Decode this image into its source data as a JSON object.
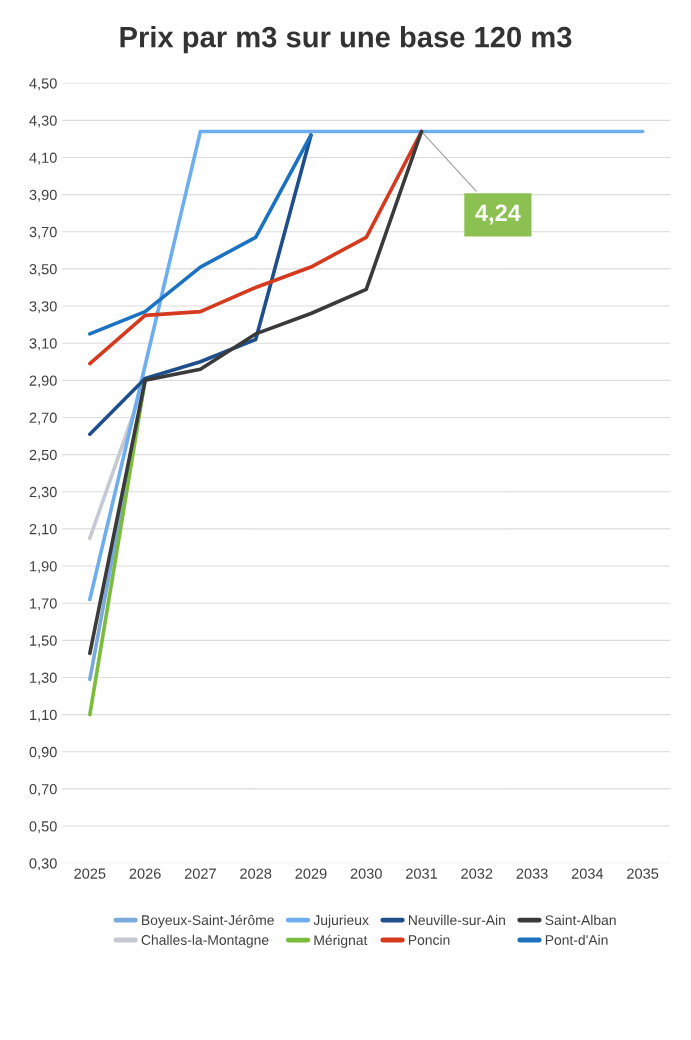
{
  "chart_data": {
    "type": "line",
    "title": "Prix par m3 sur une base 120 m3",
    "categories": [
      "2025",
      "2026",
      "2027",
      "2028",
      "2029",
      "2030",
      "2031",
      "2032",
      "2033",
      "2034",
      "2035"
    ],
    "series": [
      {
        "name": "Boyeux-Saint-Jérôme",
        "color": "#7aa9dc",
        "values": [
          1.29,
          2.9,
          null,
          null,
          null,
          null,
          null,
          null,
          null,
          null,
          null
        ]
      },
      {
        "name": "Challes-la-Montagne",
        "color": "#c6c8d2",
        "values": [
          2.05,
          2.9,
          null,
          null,
          null,
          null,
          null,
          null,
          null,
          null,
          null
        ]
      },
      {
        "name": "Jujurieux",
        "color": "#6eaeee",
        "values": [
          1.72,
          2.98,
          4.24,
          4.24,
          4.24,
          4.24,
          4.24,
          4.24,
          4.24,
          4.24,
          4.24
        ]
      },
      {
        "name": "Mérignat",
        "color": "#7cbc3c",
        "values": [
          1.1,
          2.9,
          null,
          null,
          null,
          null,
          null,
          null,
          null,
          null,
          null
        ]
      },
      {
        "name": "Neuville-sur-Ain",
        "color": "#1f4e8c",
        "values": [
          2.61,
          2.91,
          3.0,
          3.12,
          4.22,
          null,
          null,
          null,
          null,
          null,
          null
        ]
      },
      {
        "name": "Poncin",
        "color": "#d63a1e",
        "values": [
          2.99,
          3.25,
          3.27,
          3.4,
          3.51,
          3.67,
          4.24,
          null,
          null,
          null,
          null
        ]
      },
      {
        "name": "Saint-Alban",
        "color": "#3a3a3a",
        "values": [
          1.43,
          2.9,
          2.96,
          3.15,
          3.26,
          3.39,
          4.24,
          null,
          null,
          null,
          null
        ]
      },
      {
        "name": "Pont-d'Ain",
        "color": "#1a72c0",
        "values": [
          3.15,
          3.27,
          3.51,
          3.67,
          4.22,
          null,
          null,
          null,
          null,
          null,
          null
        ]
      }
    ],
    "ylim": [
      0.3,
      4.5
    ],
    "yticks": [
      {
        "value": 0.3,
        "label": "0,30"
      },
      {
        "value": 0.5,
        "label": "0,50"
      },
      {
        "value": 0.7,
        "label": "0,70"
      },
      {
        "value": 0.9,
        "label": "0,90"
      },
      {
        "value": 1.1,
        "label": "1,10"
      },
      {
        "value": 1.3,
        "label": "1,30"
      },
      {
        "value": 1.5,
        "label": "1,50"
      },
      {
        "value": 1.7,
        "label": "1,70"
      },
      {
        "value": 1.9,
        "label": "1,90"
      },
      {
        "value": 2.1,
        "label": "2,10"
      },
      {
        "value": 2.3,
        "label": "2,30"
      },
      {
        "value": 2.5,
        "label": "2,50"
      },
      {
        "value": 2.7,
        "label": "2,70"
      },
      {
        "value": 2.9,
        "label": "2,90"
      },
      {
        "value": 3.1,
        "label": "3,10"
      },
      {
        "value": 3.3,
        "label": "3,30"
      },
      {
        "value": 3.5,
        "label": "3,50"
      },
      {
        "value": 3.7,
        "label": "3,70"
      },
      {
        "value": 3.9,
        "label": "3,90"
      },
      {
        "value": 4.1,
        "label": "4,10"
      },
      {
        "value": 4.3,
        "label": "4,30"
      },
      {
        "value": 4.5,
        "label": "4,50"
      }
    ],
    "annotations": [
      {
        "text": "4,24",
        "x": "2031",
        "y": 4.24
      }
    ],
    "grid": "y",
    "legend": "bottom",
    "marker": "none",
    "line_style": "solid"
  }
}
